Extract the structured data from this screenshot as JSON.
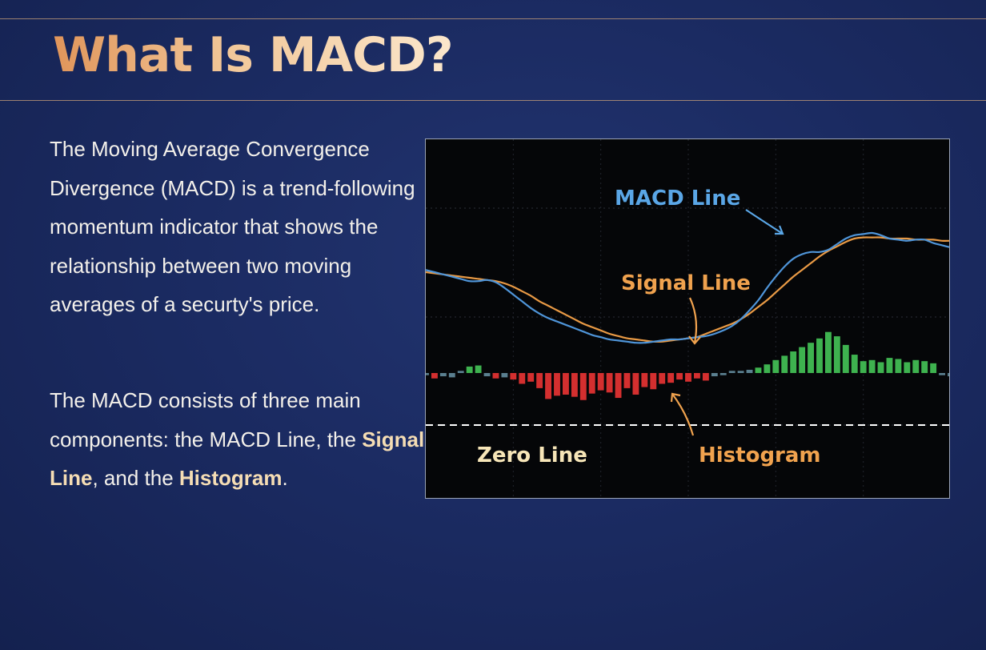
{
  "title": "What Is MACD?",
  "paragraph1": "The Moving Average Convergence Divergence (MACD) is a trend-following momentum indicator that shows the relationship between two moving averages of a securty's price.",
  "paragraph2": {
    "part1": "The MACD consists of three main components: the MACD Line, the ",
    "signal": "Signal Line",
    "part2": ", and the ",
    "histogram": "Histogram",
    "part3": "."
  },
  "colors": {
    "background": "#1b2b62",
    "title_start": "#e0955a",
    "title_end": "#fbe7cc",
    "macd": "#4f95d9",
    "signal": "#e99a45",
    "hist_positive": "#3eb24f",
    "hist_negative": "#d42f2f",
    "zero_line": "#ffffff"
  },
  "chart_data": {
    "type": "line",
    "title": "",
    "annotations": {
      "macd": "MACD Line",
      "signal": "Signal Line",
      "zero": "Zero Line",
      "histogram": "Histogram"
    },
    "x_count": 61,
    "ylim": [
      -6,
      10
    ],
    "grid": true,
    "series": [
      {
        "name": "MACD Line",
        "values": [
          4.2,
          4.0,
          3.8,
          3.6,
          3.4,
          3.2,
          3.2,
          3.3,
          3.1,
          2.6,
          2.0,
          1.4,
          0.8,
          0.3,
          -0.1,
          -0.4,
          -0.7,
          -1.0,
          -1.3,
          -1.6,
          -1.8,
          -2.0,
          -2.1,
          -2.2,
          -2.3,
          -2.3,
          -2.2,
          -2.1,
          -2.0,
          -2.0,
          -1.9,
          -1.8,
          -1.7,
          -1.5,
          -1.2,
          -0.8,
          -0.2,
          0.6,
          1.5,
          2.6,
          3.6,
          4.5,
          5.2,
          5.6,
          5.8,
          5.8,
          6.0,
          6.5,
          7.0,
          7.3,
          7.4,
          7.5,
          7.3,
          7.0,
          6.9,
          6.8,
          6.9,
          6.9,
          6.6,
          6.4,
          6.2
        ]
      },
      {
        "name": "Signal Line",
        "values": [
          4.0,
          3.9,
          3.8,
          3.7,
          3.6,
          3.5,
          3.4,
          3.3,
          3.2,
          3.0,
          2.7,
          2.3,
          1.9,
          1.4,
          1.0,
          0.6,
          0.2,
          -0.2,
          -0.6,
          -0.9,
          -1.2,
          -1.5,
          -1.7,
          -1.9,
          -2.0,
          -2.1,
          -2.2,
          -2.2,
          -2.1,
          -2.0,
          -1.9,
          -1.8,
          -1.5,
          -1.2,
          -0.9,
          -0.6,
          -0.2,
          0.3,
          0.9,
          1.5,
          2.2,
          2.9,
          3.6,
          4.2,
          4.8,
          5.4,
          5.9,
          6.3,
          6.7,
          7.0,
          7.1,
          7.1,
          7.1,
          7.0,
          7.0,
          7.0,
          6.9,
          6.9,
          6.9,
          6.8,
          6.8
        ]
      },
      {
        "name": "Histogram",
        "values": [
          -0.2,
          -0.5,
          -0.3,
          -0.4,
          0.2,
          0.6,
          0.7,
          -0.3,
          -0.5,
          -0.4,
          -0.6,
          -1.0,
          -0.8,
          -1.4,
          -2.4,
          -2.1,
          -2.0,
          -2.2,
          -2.5,
          -1.9,
          -1.6,
          -1.8,
          -2.3,
          -1.4,
          -2.0,
          -1.3,
          -1.5,
          -1.0,
          -0.9,
          -0.6,
          -0.8,
          -0.5,
          -0.7,
          -0.3,
          -0.2,
          0.2,
          0.2,
          0.3,
          0.5,
          0.8,
          1.2,
          1.6,
          2.0,
          2.4,
          2.8,
          3.2,
          3.8,
          3.4,
          2.6,
          1.7,
          1.1,
          1.2,
          1.0,
          1.4,
          1.3,
          1.0,
          1.2,
          1.1,
          0.9,
          -0.2,
          -0.3
        ]
      }
    ]
  }
}
